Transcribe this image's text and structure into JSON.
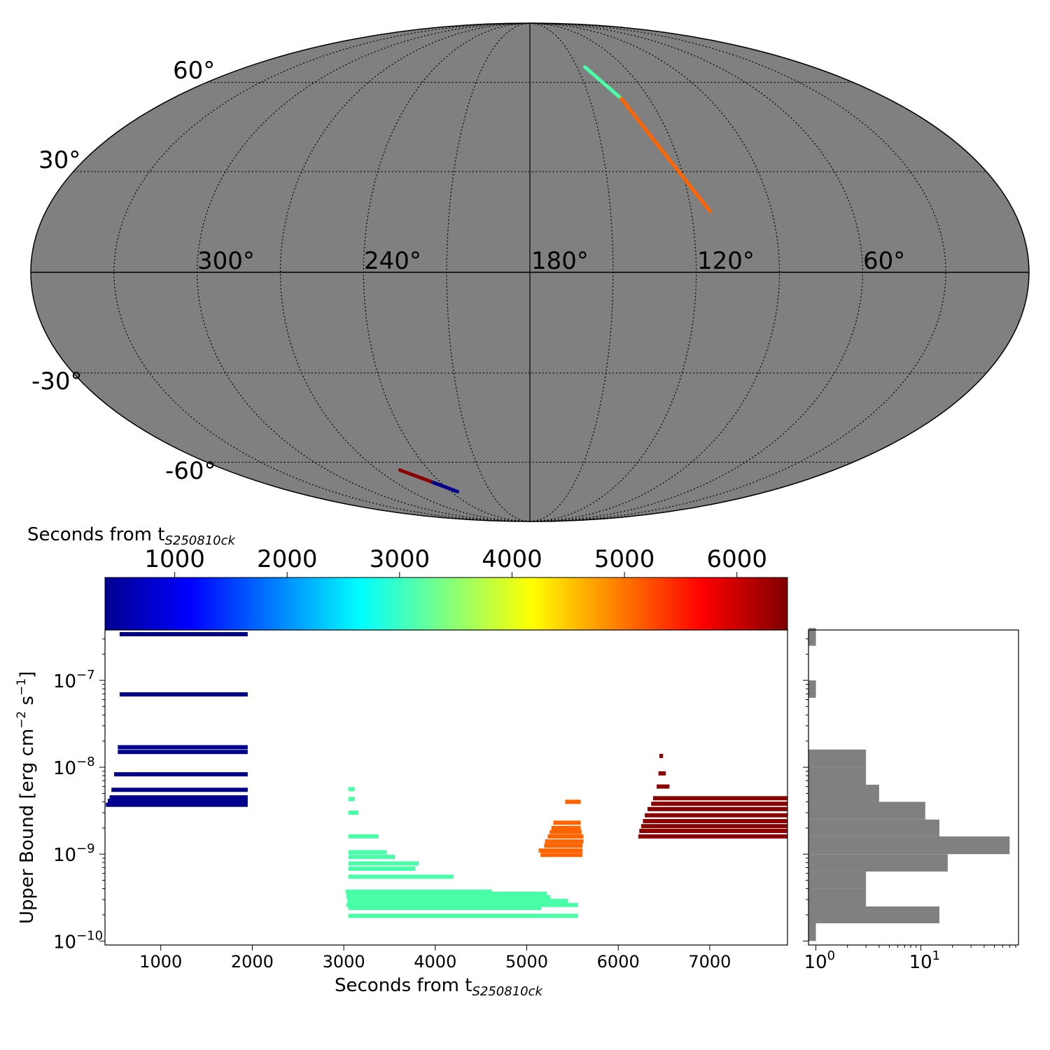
{
  "chart_data": [
    {
      "type": "scatter",
      "projection": "mollweide",
      "background_color": "#808080",
      "grid": true,
      "lon_ticks": [
        "300°",
        "240°",
        "180°",
        "120°",
        "60°"
      ],
      "lat_ticks": [
        "60°",
        "30°",
        "-30°",
        "-60°"
      ],
      "series": [
        {
          "color": "#48ffa8",
          "segments": [
            [
              145,
              66,
              134,
              54
            ]
          ]
        },
        {
          "color": "#ff6400",
          "segments": [
            [
              134,
              54,
              113,
              18
            ]
          ]
        },
        {
          "color": "#8b0000",
          "segments": [
            [
              257,
              -63,
              245,
              -68
            ]
          ]
        },
        {
          "color": "#00008b",
          "segments": [
            [
              245,
              -68,
              235,
              -72
            ]
          ]
        }
      ]
    },
    {
      "type": "colorbar",
      "label": "Seconds from t",
      "label_sub": "S250810ck",
      "colormap": "jet",
      "range": [
        380,
        6450
      ],
      "ticks": [
        "1000",
        "2000",
        "3000",
        "4000",
        "5000",
        "6000"
      ]
    },
    {
      "type": "bar",
      "orientation": "horizontal-ranges",
      "xlabel": "Seconds from t",
      "xlabel_sub": "S250810ck",
      "ylabel": "Upper Bound [erg cm",
      "ylabel_exp1": "−2",
      "ylabel_mid": " s",
      "ylabel_exp2": "−1",
      "ylabel_end": "]",
      "xlim": [
        390,
        7850
      ],
      "ylog": true,
      "ylim": [
        9e-11,
        3.8e-07
      ],
      "xticks": [
        "1000",
        "2000",
        "3000",
        "4000",
        "5000",
        "6000",
        "7000"
      ],
      "yticks": [
        "10",
        "10",
        "10",
        "10"
      ],
      "ytick_exponents": [
        "−10",
        "−9",
        "−8",
        "−7"
      ],
      "groups": [
        {
          "color": "#00008b",
          "bars": [
            [
              550,
              1950,
              3.4e-07
            ],
            [
              550,
              1950,
              6.9e-08
            ],
            [
              530,
              1950,
              1.7e-08
            ],
            [
              530,
              1950,
              1.5e-08
            ],
            [
              490,
              1950,
              8.3e-09
            ],
            [
              460,
              1950,
              5.5e-09
            ],
            [
              440,
              1950,
              4.5e-09
            ],
            [
              420,
              1950,
              4.1e-09
            ],
            [
              400,
              1950,
              3.7e-09
            ]
          ]
        },
        {
          "color": "#48ffa8",
          "bars": [
            [
              3050,
              3120,
              5.6e-09
            ],
            [
              3050,
              3120,
              4.3e-09
            ],
            [
              3050,
              3160,
              3e-09
            ],
            [
              3050,
              3380,
              1.6e-09
            ],
            [
              3050,
              3470,
              1.05e-09
            ],
            [
              3050,
              3560,
              9.3e-10
            ],
            [
              3050,
              3820,
              7.8e-10
            ],
            [
              3050,
              3780,
              6.8e-10
            ],
            [
              3050,
              4200,
              5.5e-10
            ],
            [
              3020,
              4620,
              3.7e-10
            ],
            [
              3030,
              5220,
              3.5e-10
            ],
            [
              3030,
              5260,
              3.2e-10
            ],
            [
              3040,
              5450,
              2.9e-10
            ],
            [
              3030,
              5560,
              2.6e-10
            ],
            [
              3050,
              5160,
              2.4e-10
            ],
            [
              3050,
              5560,
              1.95e-10
            ]
          ]
        },
        {
          "color": "#ff6400",
          "bars": [
            [
              5420,
              5590,
              4e-09
            ],
            [
              5290,
              5590,
              2.3e-09
            ],
            [
              5270,
              5590,
              2e-09
            ],
            [
              5250,
              5600,
              1.8e-09
            ],
            [
              5230,
              5620,
              1.6e-09
            ],
            [
              5200,
              5620,
              1.4e-09
            ],
            [
              5190,
              5610,
              1.25e-09
            ],
            [
              5130,
              5610,
              1.1e-09
            ],
            [
              5150,
              5610,
              9.8e-10
            ]
          ]
        },
        {
          "color": "#8b0000",
          "bars": [
            [
              6450,
              6490,
              1.35e-08
            ],
            [
              6440,
              6520,
              8.5e-09
            ],
            [
              6420,
              6560,
              6e-09
            ],
            [
              6380,
              7850,
              4.4e-09
            ],
            [
              6360,
              7850,
              3.8e-09
            ],
            [
              6320,
              7850,
              3.3e-09
            ],
            [
              6290,
              7850,
              2.8e-09
            ],
            [
              6270,
              7850,
              2.4e-09
            ],
            [
              6250,
              7850,
              2.1e-09
            ],
            [
              6230,
              7850,
              1.85e-09
            ],
            [
              6220,
              7850,
              1.6e-09
            ]
          ]
        }
      ]
    },
    {
      "type": "bar",
      "orientation": "horizontal-histogram",
      "color": "#808080",
      "xlog": true,
      "xlim": [
        0.85,
        85
      ],
      "xticks": [
        "10",
        "10"
      ],
      "xtick_exponents": [
        "0",
        "1"
      ],
      "bins": [
        {
          "low": 1e-10,
          "high": 1.6e-10,
          "count": 1
        },
        {
          "low": 1.6e-10,
          "high": 2.5e-10,
          "count": 15
        },
        {
          "low": 2.5e-10,
          "high": 4e-10,
          "count": 3
        },
        {
          "low": 4e-10,
          "high": 6.3e-10,
          "count": 3
        },
        {
          "low": 6.3e-10,
          "high": 1e-09,
          "count": 18
        },
        {
          "low": 1e-09,
          "high": 1.6e-09,
          "count": 70
        },
        {
          "low": 1.6e-09,
          "high": 2.5e-09,
          "count": 15
        },
        {
          "low": 2.5e-09,
          "high": 4e-09,
          "count": 11
        },
        {
          "low": 4e-09,
          "high": 6.3e-09,
          "count": 4
        },
        {
          "low": 6.3e-09,
          "high": 1e-08,
          "count": 3
        },
        {
          "low": 1e-08,
          "high": 1.6e-08,
          "count": 3
        },
        {
          "low": 6.3e-08,
          "high": 1e-07,
          "count": 1
        },
        {
          "low": 2.5e-07,
          "high": 4e-07,
          "count": 1
        }
      ]
    }
  ]
}
